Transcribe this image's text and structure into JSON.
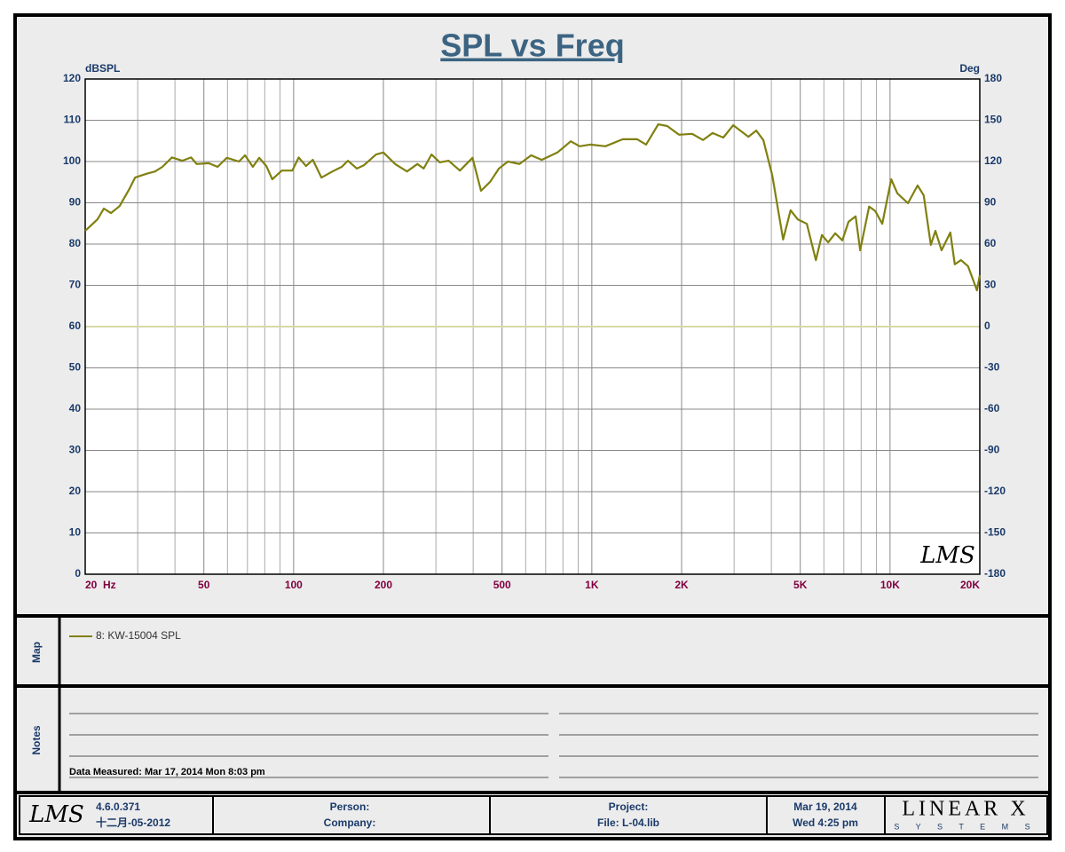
{
  "chart_data": {
    "type": "line",
    "title": "SPL vs Freq",
    "ylabel": "dBSPL",
    "y2label": "Deg",
    "xscale": "log",
    "xlim": [
      20,
      20000
    ],
    "xticks": [
      {
        "value": 20,
        "label": "20  Hz"
      },
      50,
      100,
      200,
      500,
      {
        "value": 1000,
        "label": "1K"
      },
      {
        "value": 2000,
        "label": "2K"
      },
      {
        "value": 5000,
        "label": "5K"
      },
      {
        "value": 10000,
        "label": "10K"
      },
      {
        "value": 20000,
        "label": "20K"
      }
    ],
    "xgrid": [
      30,
      40,
      60,
      70,
      80,
      90,
      300,
      400,
      600,
      700,
      800,
      900,
      3000,
      4000,
      6000,
      7000,
      8000,
      9000
    ],
    "ylim": [
      0,
      120
    ],
    "yticks": [
      0,
      10,
      20,
      30,
      40,
      50,
      60,
      70,
      80,
      90,
      100,
      110,
      120
    ],
    "y2lim": [
      -180,
      180
    ],
    "y2ticks": [
      -180,
      -150,
      -120,
      -90,
      -60,
      -30,
      0,
      30,
      60,
      90,
      120,
      150,
      180
    ],
    "grid": true,
    "zero_line_color": "#d8d8a8",
    "watermark": "LMS",
    "x": [
      20,
      22,
      23.1,
      24.4,
      26.1,
      28.1,
      29.4,
      32,
      34.3,
      36.3,
      39.1,
      42.3,
      45.3,
      47.3,
      51.9,
      55.6,
      59.7,
      65.6,
      68.7,
      73,
      76.7,
      81,
      84.8,
      91.3,
      99,
      104,
      110,
      116,
      124,
      135,
      145,
      152,
      163,
      172,
      189,
      200,
      219,
      240,
      260,
      273,
      290,
      309,
      331,
      361,
      398,
      425,
      456,
      488,
      523,
      572,
      626,
      679,
      767,
      850,
      910,
      988,
      1110,
      1270,
      1420,
      1520,
      1670,
      1790,
      1960,
      2170,
      2360,
      2540,
      2760,
      2980,
      3350,
      3560,
      3760,
      4030,
      4380,
      4640,
      4900,
      5260,
      5640,
      5910,
      6200,
      6550,
      6920,
      7260,
      7670,
      7940,
      8510,
      8920,
      9420,
      10090,
      10580,
      11480,
      12370,
      12970,
      13700,
      14200,
      14890,
      15930,
      16490,
      17290,
      18270,
      19560,
      20000
    ],
    "series": [
      {
        "name": "8: KW-15004 SPL",
        "color": "#808010",
        "values": [
          83.2,
          86,
          88.6,
          87.5,
          89.2,
          93.3,
          96.1,
          97,
          97.6,
          98.7,
          101,
          100.2,
          101,
          99.4,
          99.6,
          98.7,
          100.9,
          100,
          101.5,
          98.7,
          100.9,
          98.9,
          95.7,
          97.8,
          97.8,
          101,
          98.9,
          100.4,
          96.1,
          97.6,
          98.7,
          100.2,
          98.3,
          99.1,
          101.7,
          102.2,
          99.4,
          97.6,
          99.4,
          98.3,
          101.7,
          99.8,
          100.2,
          97.8,
          100.9,
          92.9,
          95.1,
          98.3,
          100,
          99.4,
          101.5,
          100.4,
          102.2,
          104.9,
          103.7,
          104.1,
          103.7,
          105.4,
          105.4,
          104.1,
          109,
          108.6,
          106.5,
          106.7,
          105.2,
          106.9,
          105.8,
          108.8,
          106,
          107.5,
          105.2,
          96.6,
          81.1,
          88.2,
          86,
          84.9,
          76.1,
          82.2,
          80.4,
          82.6,
          80.9,
          85.4,
          86.7,
          78.5,
          89.1,
          88,
          84.9,
          95.7,
          92.3,
          89.9,
          94.2,
          91.8,
          79.8,
          83.2,
          78.5,
          82.8,
          75.1,
          76.1,
          74.6,
          68.8,
          72.5
        ]
      }
    ]
  },
  "map_panel": {
    "label": "Map"
  },
  "notes_panel": {
    "label": "Notes",
    "text": "Data Measured: Mar 17, 2014  Mon  8:03 pm"
  },
  "footer": {
    "logo": "LMS",
    "version": "4.6.0.371",
    "build_date": "十二月-05-2012",
    "person": "Person:",
    "company": "Company:",
    "project": "Project:",
    "file": "File: L-04.lib",
    "date": "Mar 19, 2014",
    "time": "Wed  4:25 pm",
    "brand": "LINEAR X",
    "brand_sub": "S Y S T E M S"
  }
}
